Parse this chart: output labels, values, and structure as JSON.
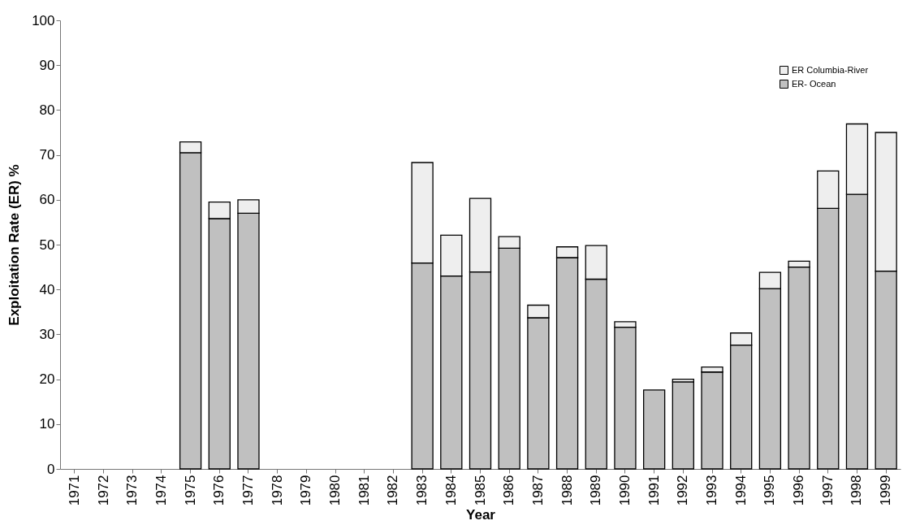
{
  "chart_data": {
    "type": "bar",
    "stacked": true,
    "xlabel": "Year",
    "ylabel": "Exploitation Rate (ER) %",
    "categories": [
      "1971",
      "1972",
      "1973",
      "1974",
      "1975",
      "1976",
      "1977",
      "1978",
      "1979",
      "1980",
      "1981",
      "1982",
      "1983",
      "1984",
      "1985",
      "1986",
      "1987",
      "1988",
      "1989",
      "1990",
      "1991",
      "1992",
      "1993",
      "1994",
      "1995",
      "1996",
      "1997",
      "1998",
      "1999"
    ],
    "series": [
      {
        "name": "ER- Ocean",
        "color": "#c0c0c0",
        "values": [
          null,
          null,
          null,
          null,
          70.5,
          55.8,
          57.0,
          null,
          null,
          null,
          null,
          null,
          45.9,
          43.0,
          43.9,
          49.2,
          33.7,
          47.1,
          42.3,
          31.6,
          17.6,
          19.4,
          21.6,
          27.6,
          40.2,
          45.0,
          58.1,
          61.2,
          44.1
        ]
      },
      {
        "name": "ER Columbia-River",
        "color": "#eeeeee",
        "values": [
          null,
          null,
          null,
          null,
          2.4,
          3.7,
          3.0,
          null,
          null,
          null,
          null,
          null,
          22.4,
          9.1,
          16.4,
          2.6,
          2.8,
          2.4,
          7.5,
          1.2,
          null,
          0.6,
          1.1,
          2.7,
          3.6,
          1.3,
          8.3,
          15.7,
          30.9
        ]
      }
    ],
    "ylim": [
      0,
      100
    ],
    "yticks": [
      0,
      10,
      20,
      30,
      40,
      50,
      60,
      70,
      80,
      90,
      100
    ],
    "grid": false,
    "legend": "top right"
  }
}
